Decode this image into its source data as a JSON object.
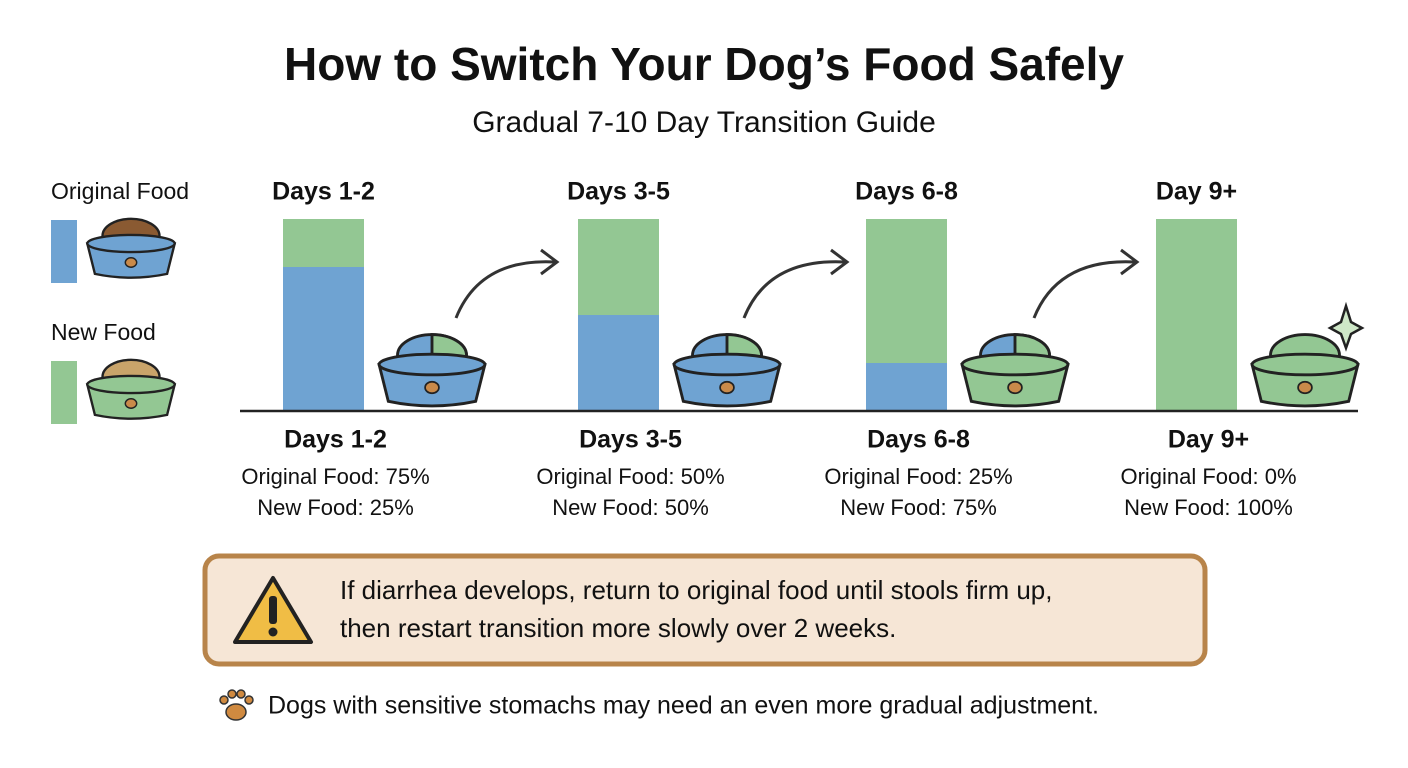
{
  "chart_data": {
    "type": "stacked-bar",
    "title": "How to Switch Your Dog’s Food Safely",
    "subtitle": "Gradual 7-10 Day Transition Guide",
    "categories": [
      "Days 1-2",
      "Days 3-5",
      "Days 6-8",
      "Day 9+"
    ],
    "series": [
      {
        "name": "Original Food",
        "color": "#6fa3d2",
        "values": [
          75,
          50,
          25,
          0
        ],
        "value_labels": [
          "Original Food: 75%",
          "Original Food: 50%",
          "Original Food: 25%",
          "Original Food: 0%"
        ]
      },
      {
        "name": "New Food",
        "color": "#93c793",
        "values": [
          25,
          50,
          75,
          100
        ],
        "value_labels": [
          "New Food: 25%",
          "New Food: 50%",
          "New Food: 75%",
          "New Food: 100%"
        ]
      }
    ],
    "ylim": [
      0,
      100
    ],
    "legend": "left"
  },
  "warning": {
    "lines": [
      "If diarrhea develops, return to original food until stools firm up,",
      "then restart transition more slowly over 2 weeks."
    ]
  },
  "note": "Dogs with sensitive stomachs may need an even more gradual adjustment."
}
